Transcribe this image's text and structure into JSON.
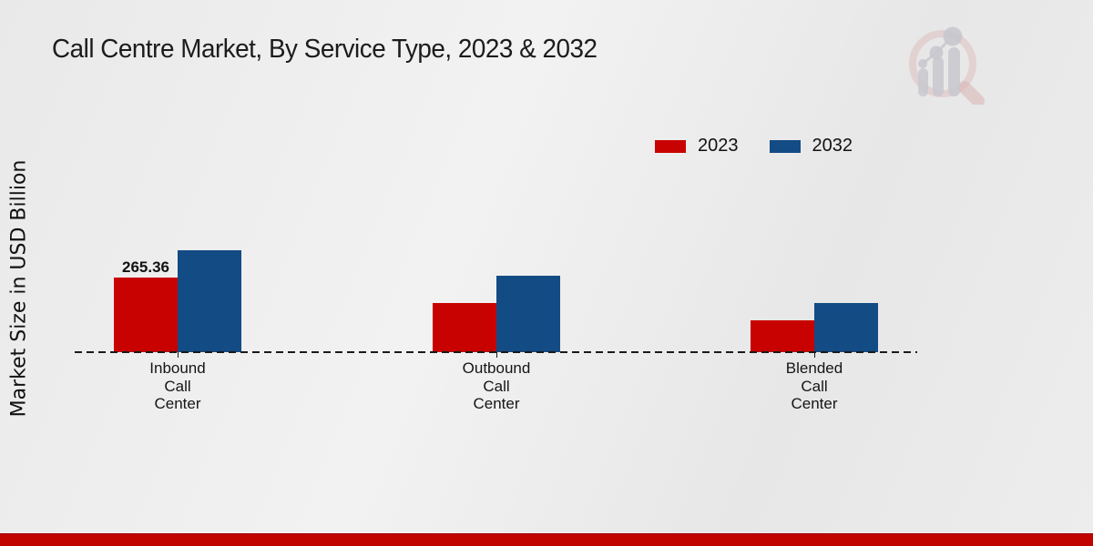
{
  "header": {
    "title": "Call Centre Market, By Service Type, 2023 & 2032"
  },
  "axes": {
    "y_label": "Market Size in USD Billion"
  },
  "legend": {
    "items": [
      {
        "label": "2023",
        "color": "#c80200"
      },
      {
        "label": "2032",
        "color": "#134b85"
      }
    ]
  },
  "logo": {
    "name": "market-research-future-watermark"
  },
  "colors": {
    "red_2023": "#c80200",
    "blue_2032": "#134b85",
    "bottom_band": "#c10400",
    "background": "#ececec"
  },
  "chart_data": {
    "type": "bar",
    "title": "Call Centre Market, By Service Type, 2023 & 2032",
    "xlabel": "",
    "ylabel": "Market Size in USD Billion",
    "categories": [
      "Inbound Call Center",
      "Outbound Call Center",
      "Blended Call Center"
    ],
    "categories_lines": [
      [
        "Inbound",
        "Call",
        "Center"
      ],
      [
        "Outbound",
        "Call",
        "Center"
      ],
      [
        "Blended",
        "Call",
        "Center"
      ]
    ],
    "series": [
      {
        "name": "2023",
        "color": "#c80200",
        "values": [
          265.36,
          174,
          112
        ],
        "value_labels": [
          "265.36",
          "",
          ""
        ]
      },
      {
        "name": "2032",
        "color": "#134b85",
        "values": [
          362,
          271,
          174
        ],
        "value_labels": [
          "",
          "",
          ""
        ]
      }
    ],
    "ylim": [
      0,
      400
    ],
    "grid": false,
    "axis_line_style": "dashed-baseline-only",
    "legend_position": "top-right"
  }
}
